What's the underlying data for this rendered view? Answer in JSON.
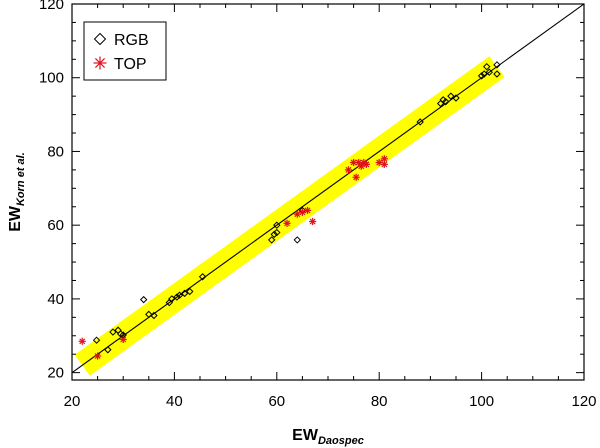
{
  "chart_data": {
    "type": "scatter",
    "xlabel": {
      "main": "EW",
      "sub": "Daospec"
    },
    "ylabel": {
      "main": "EW",
      "sub": "Korn et al."
    },
    "xlim": [
      20,
      120
    ],
    "ylim": [
      18,
      120
    ],
    "x_ticks": [
      20,
      40,
      60,
      80,
      100,
      120
    ],
    "y_ticks": [
      20,
      40,
      60,
      80,
      100,
      120
    ],
    "grid": false,
    "legend": {
      "position": "top-left"
    },
    "reference_line": {
      "type": "one-to-one",
      "from": [
        20,
        20
      ],
      "to": [
        120,
        120
      ]
    },
    "band": {
      "from": [
        22,
        22
      ],
      "to": [
        103,
        103
      ],
      "half_width": 3.5,
      "color": "#ffff00"
    },
    "series": [
      {
        "name": "RGB",
        "marker": "diamond",
        "color": "#000000",
        "points": [
          [
            24.8,
            28.8
          ],
          [
            27.0,
            26.2
          ],
          [
            28.0,
            31.0
          ],
          [
            29.0,
            31.5
          ],
          [
            29.5,
            30.5
          ],
          [
            30.0,
            30.2
          ],
          [
            34.0,
            39.8
          ],
          [
            35.0,
            35.8
          ],
          [
            36.0,
            35.5
          ],
          [
            39.0,
            39.0
          ],
          [
            39.5,
            40.0
          ],
          [
            40.5,
            40.5
          ],
          [
            41.0,
            41.0
          ],
          [
            42.0,
            41.5
          ],
          [
            43.0,
            42.0
          ],
          [
            45.5,
            46.0
          ],
          [
            59.0,
            56.0
          ],
          [
            59.5,
            57.5
          ],
          [
            60.0,
            58.0
          ],
          [
            60.0,
            60.0
          ],
          [
            64.0,
            56.0
          ],
          [
            65.0,
            64.0
          ],
          [
            88.0,
            88.0
          ],
          [
            92.0,
            93.0
          ],
          [
            92.5,
            94.0
          ],
          [
            93.0,
            93.5
          ],
          [
            94.0,
            95.0
          ],
          [
            95.0,
            94.5
          ],
          [
            100.0,
            100.5
          ],
          [
            100.5,
            101.0
          ],
          [
            101.0,
            103.0
          ],
          [
            101.5,
            101.5
          ],
          [
            103.0,
            101.0
          ],
          [
            103.0,
            103.5
          ]
        ]
      },
      {
        "name": "TOP",
        "marker": "asterisk",
        "color": "#e0121f",
        "points": [
          [
            22.0,
            28.5
          ],
          [
            25.0,
            24.5
          ],
          [
            30.0,
            29.0
          ],
          [
            62.0,
            60.5
          ],
          [
            64.0,
            63.0
          ],
          [
            65.0,
            63.5
          ],
          [
            66.0,
            64.0
          ],
          [
            67.0,
            61.0
          ],
          [
            74.0,
            75.0
          ],
          [
            75.0,
            77.0
          ],
          [
            75.5,
            73.0
          ],
          [
            76.0,
            77.0
          ],
          [
            76.5,
            76.0
          ],
          [
            77.0,
            77.0
          ],
          [
            77.5,
            76.5
          ],
          [
            80.0,
            77.0
          ],
          [
            81.0,
            78.0
          ],
          [
            81.0,
            76.5
          ]
        ]
      }
    ]
  }
}
